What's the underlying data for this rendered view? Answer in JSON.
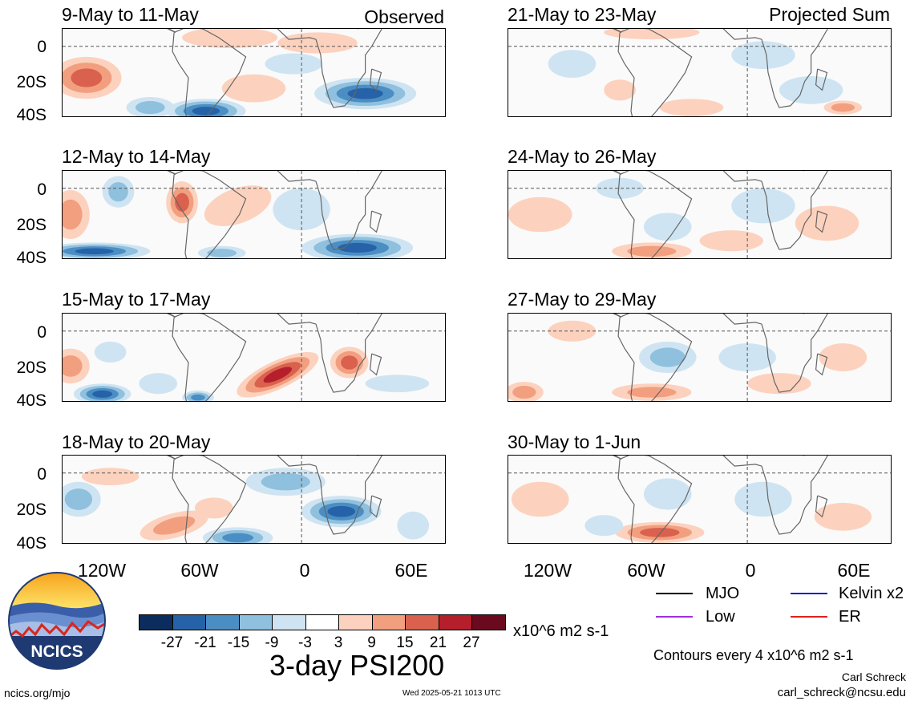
{
  "headers": {
    "observed": "Observed",
    "projected": "Projected Sum"
  },
  "panels_left": [
    {
      "title": "9-May to 11-May"
    },
    {
      "title": "12-May to 14-May"
    },
    {
      "title": "15-May to 17-May"
    },
    {
      "title": "18-May to 20-May"
    }
  ],
  "panels_right": [
    {
      "title": "21-May to 23-May"
    },
    {
      "title": "24-May to 26-May"
    },
    {
      "title": "27-May to 29-May"
    },
    {
      "title": "30-May to 1-Jun"
    }
  ],
  "lat_labels": [
    "0",
    "20S",
    "40S"
  ],
  "lon_labels": [
    "120W",
    "60W",
    "0",
    "60E"
  ],
  "legend": {
    "mjo": "MJO",
    "kelvin": "Kelvin x2",
    "low": "Low",
    "er": "ER",
    "mjo_color": "#000000",
    "kelvin_color": "#1c1cd6",
    "low_color": "#a030e0",
    "er_color": "#e02020"
  },
  "colorbar": {
    "ticks": [
      "-27",
      "-21",
      "-15",
      "-9",
      "-3",
      "3",
      "9",
      "15",
      "21",
      "27"
    ],
    "units": "x10^6 m2 s-1",
    "colors": [
      "#0b2d5e",
      "#2662a8",
      "#4b8ec4",
      "#8fc0de",
      "#cfe4f2",
      "#ffffff",
      "#fcd2be",
      "#f29f80",
      "#d9614e",
      "#b51f2b",
      "#6b0a1e"
    ]
  },
  "title": "3-day PSI200",
  "contours_note": "Contours every 4 x10^6 m2 s-1",
  "credit_name": "Carl Schreck",
  "credit_email": "carl_schreck@ncsu.edu",
  "website": "ncics.org/mjo",
  "timestamp": "Wed 2025-05-21 1013 UTC",
  "logo_text": "NCICS"
}
